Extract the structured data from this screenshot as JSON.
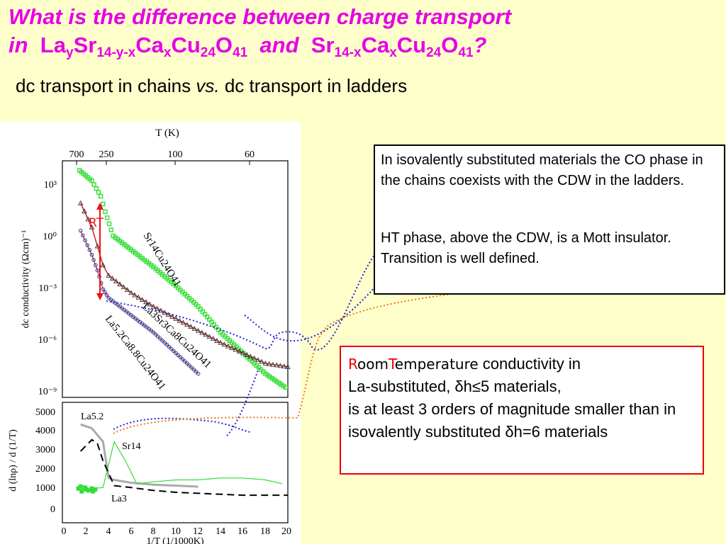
{
  "slide": {
    "title_q1": "What is the difference between charge transport",
    "title_in": "in",
    "title_and": "and",
    "title_end": "?",
    "subtitle_left": "dc transport in chains",
    "subtitle_vs": "vs.",
    "subtitle_right": "dc transport in ladders",
    "box1_para1": "In isovalently substituted materials the CO phase in the chains coexists with the CDW in the ladders.",
    "box1_para2": "HT phase, above the CDW, is a Mott insulator. Transition is well defined.",
    "box2_R": "R",
    "box2_oom": "oom",
    "box2_T": "T",
    "box2_emperature": "emperature",
    "box2_line1_rest": " conductivity in",
    "box2_line2": "La-substituted, δh≤5 materials,",
    "box2_line3": "is at least 3 orders of magnitude smaller than in",
    "box2_line4": "isovalently substituted  δh=6 materials"
  },
  "chart_labels": {
    "top_axis_title": "T (K)",
    "top_ticks": [
      "700",
      "250",
      "100",
      "60"
    ],
    "y_upper_label": "dc conductivity (Ωcm)⁻¹",
    "y_upper_ticks": [
      "10³",
      "10⁰",
      "10⁻³",
      "10⁻⁶",
      "10⁻⁹"
    ],
    "y_lower_label": "d (lnρ) / d (1/T)",
    "y_lower_ticks": [
      "5000",
      "4000",
      "3000",
      "2000",
      "1000",
      "0"
    ],
    "x_label": "1/T (1/1000K)",
    "x_ticks": [
      "0",
      "2",
      "4",
      "6",
      "8",
      "10",
      "12",
      "14",
      "16",
      "18",
      "20"
    ],
    "rt_label": "RT",
    "curve_sr14": "Sr14Cu24O41",
    "curve_la3": "La3Sr3Ca8Cu24O41",
    "curve_la52": "La5.2Ca8.8Cu24O41",
    "lower_la52": "La5.2",
    "lower_sr14": "Sr14",
    "lower_la3": "La3"
  },
  "colors": {
    "title": "#e600e6",
    "background": "#ffffcc",
    "sr14": "#33dd33",
    "la3_fit": "#cc2222",
    "la52_marker": "#1f3fa6",
    "rt_arrow": "#ee1111",
    "dotted_blue": "#2222cc",
    "dotted_orange": "#ee7711"
  },
  "chart_data": [
    {
      "type": "scatter",
      "xlabel": "1/T (1/1000K)",
      "ylabel": "dc conductivity (Ωcm)⁻¹",
      "log_y": true,
      "x_range": [
        0,
        20
      ],
      "y_range_log10": [
        -9,
        4
      ],
      "series": [
        {
          "name": "Sr14Cu24O41",
          "x": [
            1.4,
            2.5,
            3.3,
            3.7,
            4.4,
            6,
            8,
            10,
            12,
            14,
            16,
            18,
            19.8
          ],
          "log10_y": [
            3.8,
            3.2,
            2.3,
            1.4,
            0.0,
            -0.8,
            -1.8,
            -2.9,
            -4.1,
            -5.6,
            -6.8,
            -8.0,
            -8.8
          ]
        },
        {
          "name": "La3Sr3Ca8Cu24O41",
          "x": [
            1.5,
            2.5,
            3.0,
            3.5,
            4,
            5,
            6,
            8,
            10,
            12,
            14,
            16,
            18,
            20
          ],
          "log10_y": [
            1.9,
            0.5,
            -0.6,
            -1.7,
            -2.3,
            -2.8,
            -3.3,
            -4.1,
            -4.8,
            -5.5,
            -6.2,
            -6.8,
            -7.4,
            -7.6
          ]
        },
        {
          "name": "La5.2Ca8.8Cu24O41",
          "x": [
            1.5,
            2.5,
            3.0,
            3.5,
            4,
            5,
            6,
            8,
            10,
            12
          ],
          "log10_y": [
            0.3,
            -1.1,
            -2.0,
            -3.1,
            -3.6,
            -4.1,
            -4.6,
            -5.6,
            -6.8,
            -8.0
          ]
        }
      ]
    },
    {
      "type": "line",
      "xlabel": "1/T (1/1000K)",
      "ylabel": "d (lnρ) / d (1/T)",
      "x_range": [
        0,
        20
      ],
      "y_range": [
        0,
        5500
      ],
      "series": [
        {
          "name": "La5.2",
          "x": [
            1.5,
            2.5,
            3.5,
            4.0,
            4.5,
            6,
            8,
            10,
            12
          ],
          "y": [
            4400,
            4200,
            3500,
            1600,
            1500,
            1350,
            1250,
            1200,
            1150
          ]
        },
        {
          "name": "Sr14",
          "x": [
            1.5,
            2.5,
            3.5,
            4.5,
            5.5,
            6.5,
            8,
            10,
            12,
            14,
            16,
            18,
            19.5
          ],
          "y": [
            1000,
            1050,
            1100,
            3500,
            2500,
            1300,
            1400,
            1500,
            1500,
            1600,
            1600,
            1500,
            1300
          ]
        },
        {
          "name": "La3",
          "x": [
            1.5,
            2.5,
            3.0,
            3.5,
            4.5,
            6,
            8,
            10,
            12,
            14,
            16,
            18,
            20
          ],
          "y": [
            3000,
            3600,
            3400,
            2500,
            1200,
            1100,
            950,
            850,
            800,
            750,
            700,
            700,
            700
          ]
        }
      ]
    }
  ]
}
